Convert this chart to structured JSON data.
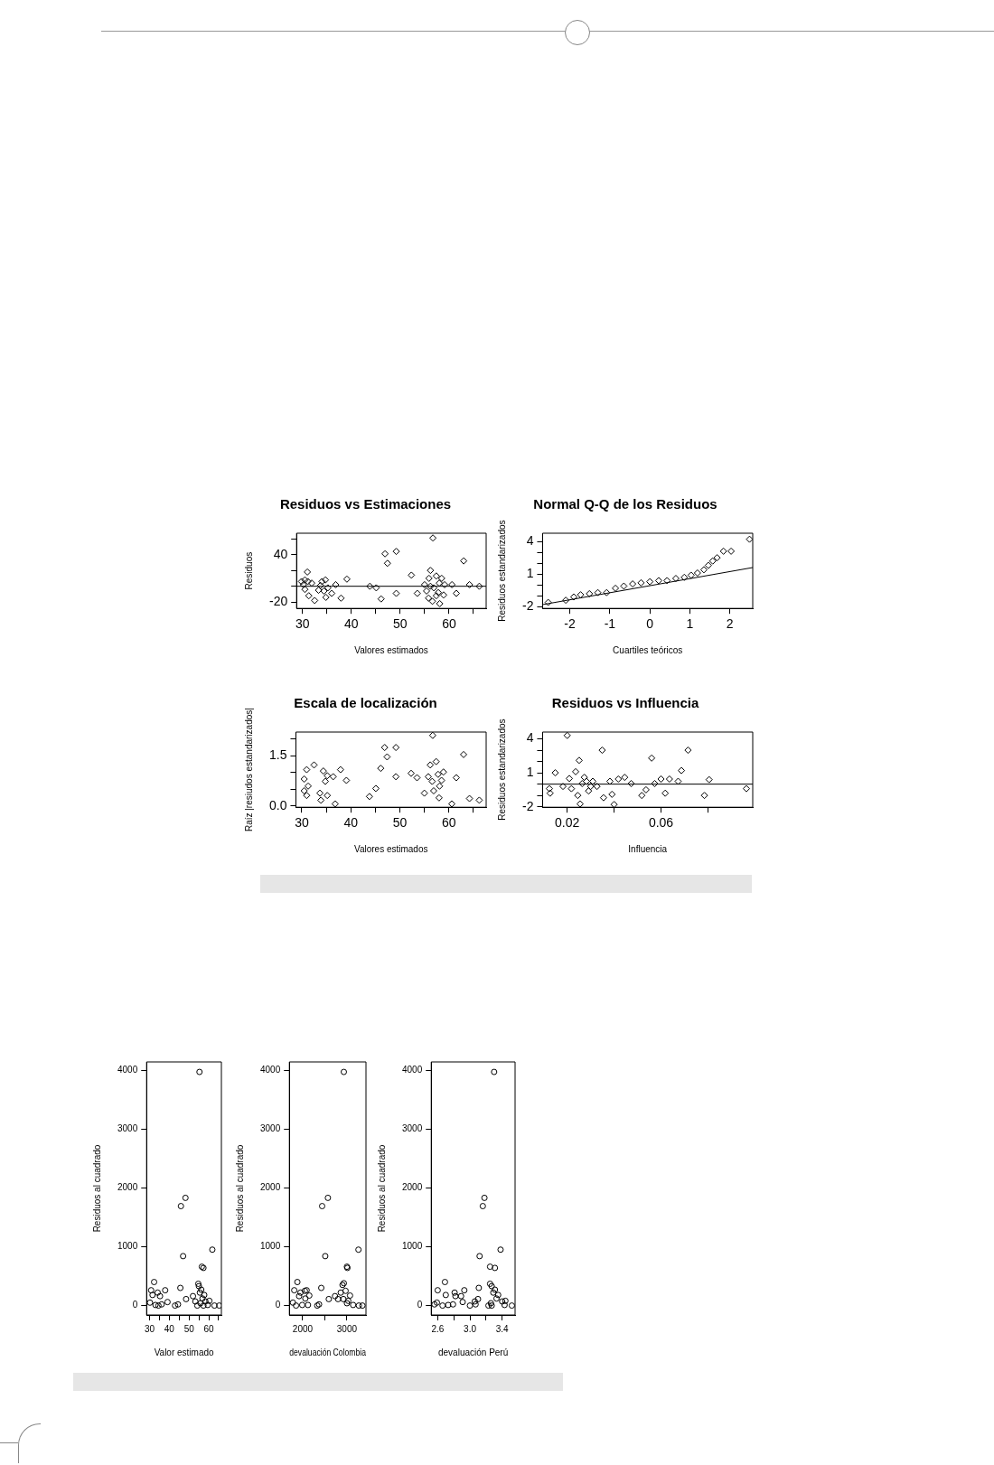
{
  "chart_data": [
    {
      "type": "scatter",
      "title": "Residuos vs Estimaciones",
      "xlabel": "Valores estimados",
      "ylabel": "Residuos",
      "marker": "diamond",
      "xlim": [
        28.8,
        67.6
      ],
      "xticks": [
        30,
        {
          "value": 35,
          "label": null
        },
        40,
        {
          "value": 45,
          "label": null
        },
        50,
        {
          "value": 55,
          "label": null
        },
        60,
        {
          "value": 65,
          "label": null
        }
      ],
      "ylim": [
        -28,
        67
      ],
      "yticks": [
        -20,
        {
          "value": 0,
          "label": null
        },
        {
          "value": 20,
          "label": null
        },
        40,
        {
          "value": 60,
          "label": null
        }
      ],
      "ref_lines": [
        {
          "axis": "y",
          "value": 0
        }
      ],
      "series": [
        {
          "color": "#000000",
          "x": [
            30.5,
            31,
            30.2,
            31.1,
            30.5,
            31.3,
            32.5,
            31.9,
            33.7,
            34,
            34.7,
            34.8,
            35.2,
            36,
            36.8,
            37.9,
            39.1,
            33.3,
            34.4,
            29.8,
            43.8,
            45.1,
            46.1,
            46.9,
            47.4,
            49.2,
            49.2,
            52.3,
            53.5,
            56.7,
            56.2,
            55,
            55.4,
            55.8,
            56.6,
            57.4,
            58,
            57.8,
            55.9,
            56.9,
            58.5,
            58.9,
            58.1,
            56.2,
            57.4,
            59.1,
            60.6,
            61.5,
            63,
            64.2,
            66.2
          ],
          "values": [
            8,
            18,
            2,
            6,
            -4,
            -12,
            -18,
            4,
            1,
            6,
            8,
            -14,
            -2,
            -9,
            2,
            -15,
            9,
            -5,
            -6,
            6,
            0,
            -2,
            -16,
            41,
            29,
            44,
            -9,
            14,
            -9,
            61,
            20,
            2,
            -6,
            -15,
            -19,
            13,
            4,
            -8,
            10,
            -2,
            10,
            -11,
            -22,
            0,
            -12,
            2,
            2,
            -9,
            32,
            2,
            0
          ]
        }
      ]
    },
    {
      "type": "scatter",
      "title": "Normal Q-Q de los Residuos",
      "xlabel": "Cuartiles teóricos",
      "ylabel": "Residuos estandarizados",
      "marker": "diamond",
      "xlim": [
        -2.68,
        2.57
      ],
      "xticks": [
        -2,
        -1,
        0,
        1,
        2
      ],
      "ylim": [
        -2.15,
        4.75
      ],
      "yticks": [
        -2,
        {
          "value": -1,
          "label": null
        },
        {
          "value": 0,
          "label": null
        },
        1,
        {
          "value": 2,
          "label": null
        },
        {
          "value": 3,
          "label": null
        },
        4
      ],
      "series": [
        {
          "color": "#000000",
          "x": [
            -2.54,
            -2.1,
            -1.9,
            -1.73,
            -1.51,
            -1.3,
            -1.08,
            -0.86,
            -0.65,
            -0.43,
            -0.22,
            0,
            0.22,
            0.43,
            0.65,
            0.86,
            1.03,
            1.19,
            1.35,
            1.46,
            1.57,
            1.68,
            1.84,
            2.03,
            2.49
          ],
          "values": [
            -1.6,
            -1.4,
            -1.1,
            -0.9,
            -0.8,
            -0.7,
            -0.7,
            -0.3,
            -0.1,
            0.1,
            0.2,
            0.3,
            0.4,
            0.4,
            0.6,
            0.7,
            0.9,
            1.1,
            1.4,
            1.8,
            2.2,
            2.5,
            3.1,
            3.1,
            4.2
          ]
        },
        {
          "type": "line",
          "color": "#000000",
          "marker": "none",
          "x": [
            -2.68,
            2.57
          ],
          "values": [
            -1.8,
            1.6
          ]
        }
      ]
    },
    {
      "type": "scatter",
      "title": "Escala de localización",
      "xlabel": "Valores estimados",
      "ylabel": "Raíz |resiudos estandarizados|",
      "marker": "diamond",
      "xlim": [
        28.8,
        67.6
      ],
      "xticks": [
        30,
        {
          "value": 35,
          "label": null
        },
        40,
        {
          "value": 45,
          "label": null
        },
        50,
        {
          "value": 55,
          "label": null
        },
        60,
        {
          "value": 65,
          "label": null
        }
      ],
      "ylim": [
        -0.04,
        2.2
      ],
      "yticks": [
        {
          "value": 0,
          "label": "0.0"
        },
        {
          "value": 0.5,
          "label": null
        },
        {
          "value": 1,
          "label": null
        },
        1.5,
        {
          "value": 2,
          "label": null
        }
      ],
      "series": [
        {
          "color": "#000000",
          "x": [
            30.5,
            31,
            32.5,
            30.5,
            31,
            31.3,
            33.7,
            33.9,
            34.4,
            34.8,
            35.2,
            36.4,
            36.8,
            37.9,
            39.1,
            35.2,
            43.8,
            45.1,
            46.1,
            46.9,
            47.4,
            49.2,
            49.2,
            52.3,
            53.5,
            56.7,
            56.2,
            55.8,
            55,
            56.6,
            57.4,
            57.8,
            58.1,
            58,
            58.5,
            58.9,
            56.9,
            61.5,
            63,
            60.6,
            64.2,
            66.2
          ],
          "values": [
            0.8,
            1.08,
            1.22,
            0.45,
            0.31,
            0.59,
            0.38,
            0.17,
            1.04,
            0.73,
            0.9,
            0.87,
            0.06,
            1.08,
            0.76,
            0.31,
            0.28,
            0.52,
            1.12,
            1.74,
            1.46,
            1.74,
            0.87,
            0.97,
            0.84,
            2.1,
            1.22,
            0.87,
            0.38,
            0.73,
            1.32,
            0.94,
            0.59,
            0.24,
            0.76,
            1.01,
            0.45,
            0.84,
            1.53,
            0.06,
            0.22,
            0.17
          ]
        }
      ]
    },
    {
      "type": "scatter",
      "title": "Residuos vs Influencia",
      "xlabel": "Influencia",
      "ylabel": "Residuos estandarizados",
      "marker": "diamond",
      "xlim": [
        0.0095,
        0.0991
      ],
      "xticks": [
        0.02,
        {
          "value": 0.04,
          "label": null
        },
        0.06,
        {
          "value": 0.08,
          "label": null
        }
      ],
      "ylim": [
        -2.04,
        4.6
      ],
      "yticks": [
        -2,
        {
          "value": -1,
          "label": null
        },
        {
          "value": 0,
          "label": null
        },
        1,
        {
          "value": 2,
          "label": null
        },
        {
          "value": 3,
          "label": null
        },
        4
      ],
      "ref_lines": [
        {
          "axis": "y",
          "value": 0
        }
      ],
      "series": [
        {
          "color": "#000000",
          "x": [
            0.0124,
            0.0127,
            0.0149,
            0.02,
            0.0251,
            0.0209,
            0.0218,
            0.0236,
            0.0245,
            0.0255,
            0.0264,
            0.0273,
            0.0291,
            0.0309,
            0.0327,
            0.0349,
            0.0355,
            0.0382,
            0.0391,
            0.04,
            0.0418,
            0.0445,
            0.0473,
            0.0518,
            0.0536,
            0.056,
            0.0573,
            0.06,
            0.0618,
            0.0636,
            0.0673,
            0.0687,
            0.0715,
            0.0785,
            0.0805,
            0.0964,
            0.0182,
            0.0282,
            0.03
          ],
          "values": [
            -0.4,
            -0.8,
            1,
            4.3,
            2.1,
            0.5,
            -0.4,
            1.1,
            -1,
            -1.75,
            0.05,
            0.6,
            -0.6,
            0.25,
            -0.2,
            3,
            -1.2,
            0.25,
            -0.9,
            -1.8,
            0.45,
            0.6,
            0.05,
            -1,
            -0.5,
            2.3,
            0.05,
            0.45,
            -0.8,
            0.45,
            0.25,
            1.2,
            3,
            -1,
            0.4,
            -0.4,
            -0.2,
            0.25,
            -0.2
          ]
        }
      ]
    },
    {
      "type": "scatter",
      "xlabel": "Valor estimado",
      "ylabel": "Residuos al cuadrado",
      "marker": "circle",
      "xlim": [
        28.5,
        66.4
      ],
      "xticks": [
        30,
        {
          "value": 35,
          "label": null
        },
        40,
        {
          "value": 45,
          "label": null
        },
        50,
        {
          "value": 55,
          "label": null
        },
        60,
        {
          "value": 65,
          "label": null
        }
      ],
      "ylim": [
        -160,
        4140
      ],
      "yticks": [
        0,
        1000,
        2000,
        3000,
        4000
      ],
      "series": [
        {
          "color": "#000000",
          "x": [
            55.3,
            45.9,
            48.2,
            47,
            61.8,
            56.5,
            57.3,
            45.6,
            48.5,
            42.9,
            44.4,
            30.8,
            32.3,
            31.5,
            34.1,
            35.3,
            37.9,
            39.1,
            30.2,
            33,
            36.1,
            34.5,
            52,
            53.2,
            54.7,
            55,
            55.5,
            56.2,
            55.8,
            56.8,
            57.7,
            58.3,
            57.3,
            59.5,
            60.3,
            62.9,
            65.3,
            54.2
          ],
          "values": [
            3970,
            1690,
            1830,
            840,
            950,
            660,
            640,
            300,
            110,
            0,
            20,
            260,
            400,
            180,
            220,
            160,
            260,
            60,
            50,
            10,
            20,
            0,
            160,
            70,
            370,
            330,
            220,
            270,
            40,
            120,
            180,
            70,
            0,
            10,
            80,
            0,
            0,
            0
          ]
        }
      ]
    },
    {
      "type": "scatter",
      "xlabel": "devaluación Colombia",
      "ylabel": "Residuos al cuadrado",
      "marker": "circle",
      "xlim": [
        1700,
        3430
      ],
      "xticks": [
        2000,
        {
          "value": 2500,
          "label": null
        },
        3000
      ],
      "ylim": [
        -160,
        4140
      ],
      "yticks": [
        0,
        1000,
        2000,
        3000,
        4000
      ],
      "series": [
        {
          "color": "#000000",
          "x": [
            2930,
            2440,
            2570,
            2510,
            3260,
            3000,
            3010,
            2420,
            2590,
            2330,
            2370,
            2900,
            2930,
            2860,
            2970,
            2920,
            3000,
            3070,
            3030,
            3140,
            3270,
            3350,
            2730,
            2800,
            2120,
            2150,
            2050,
            1880,
            1810,
            1950,
            1920,
            1780,
            1990,
            2060,
            1850,
            2090
          ],
          "values": [
            3970,
            1690,
            1830,
            840,
            950,
            660,
            640,
            300,
            110,
            0,
            20,
            350,
            380,
            220,
            250,
            110,
            40,
            170,
            80,
            10,
            0,
            0,
            160,
            110,
            10,
            170,
            250,
            400,
            260,
            220,
            160,
            50,
            10,
            120,
            0,
            260
          ]
        }
      ]
    },
    {
      "type": "scatter",
      "xlabel": "devaluación Perú",
      "ylabel": "Residuos al cuadrado",
      "marker": "circle",
      "xlim": [
        2.52,
        3.56
      ],
      "xticks": [
        2.6,
        {
          "value": 2.8,
          "label": null
        },
        {
          "value": 3,
          "label": "3.0"
        },
        {
          "value": 3.2,
          "label": null
        },
        3.4
      ],
      "ylim": [
        -160,
        4140
      ],
      "yticks": [
        0,
        1000,
        2000,
        3000,
        4000
      ],
      "series": [
        {
          "color": "#000000",
          "x": [
            3.3,
            3.16,
            3.18,
            3.12,
            3.38,
            3.25,
            3.31,
            3.11,
            3.1,
            3,
            3.07,
            2.6,
            2.69,
            2.7,
            2.81,
            2.82,
            2.93,
            2.91,
            2.59,
            2.73,
            2.79,
            2.66,
            2.89,
            3.06,
            3.25,
            3.27,
            3.29,
            3.31,
            3.26,
            3.33,
            3.35,
            3.4,
            3.27,
            3.43,
            3.44,
            3.52,
            3.23,
            2.56
          ],
          "values": [
            3970,
            1690,
            1830,
            840,
            950,
            660,
            640,
            300,
            110,
            0,
            20,
            260,
            400,
            180,
            220,
            160,
            260,
            60,
            50,
            10,
            20,
            0,
            160,
            70,
            370,
            330,
            220,
            270,
            40,
            120,
            180,
            70,
            0,
            10,
            80,
            0,
            0,
            20
          ]
        }
      ]
    }
  ]
}
